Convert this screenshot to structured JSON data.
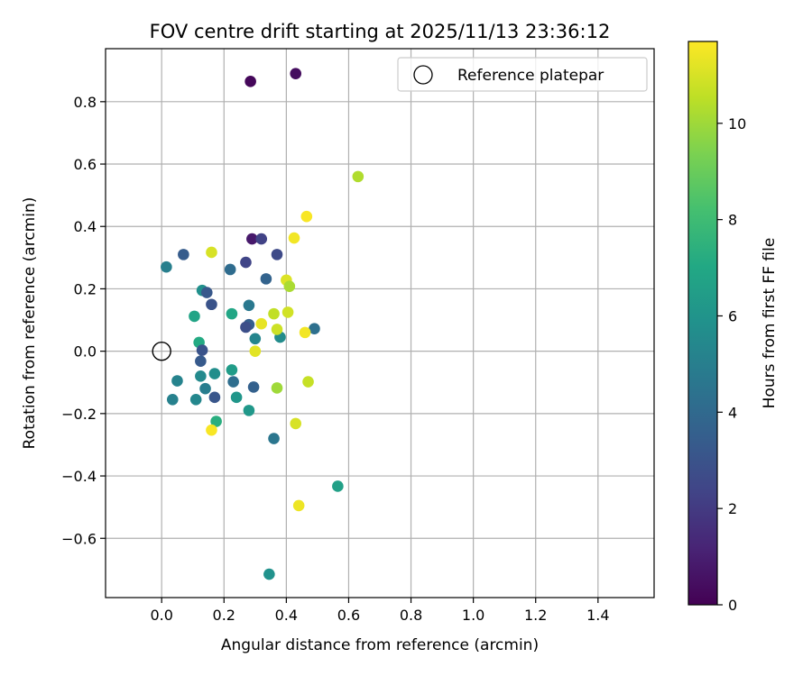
{
  "chart_data": {
    "type": "scatter",
    "title": "FOV centre drift starting at 2025/11/13 23:36:12",
    "xlabel": "Angular distance from reference (arcmin)",
    "ylabel": "Rotation from reference (arcmin)",
    "xlim": [
      -0.18,
      1.58
    ],
    "ylim": [
      -0.79,
      0.97
    ],
    "xticks": [
      0.0,
      0.2,
      0.4,
      0.6,
      0.8,
      1.0,
      1.2,
      1.4
    ],
    "xtick_labels": [
      "0.0",
      "0.2",
      "0.4",
      "0.6",
      "0.8",
      "1.0",
      "1.2",
      "1.4"
    ],
    "yticks": [
      -0.6,
      -0.4,
      -0.2,
      0.0,
      0.2,
      0.4,
      0.6,
      0.8
    ],
    "ytick_labels": [
      "−0.6",
      "−0.4",
      "−0.2",
      "0.0",
      "0.2",
      "0.4",
      "0.6",
      "0.8"
    ],
    "grid": true,
    "legend": {
      "label": "Reference platepar",
      "placement": "top-right"
    },
    "reference": {
      "x": 0.0,
      "y": 0.0
    },
    "colorbar": {
      "label": "Hours from first FF file",
      "range": [
        0,
        11.7
      ],
      "ticks": [
        0,
        2,
        4,
        6,
        8,
        10
      ],
      "tick_labels": [
        "0",
        "2",
        "4",
        "6",
        "8",
        "10"
      ],
      "colormap": "viridis"
    },
    "points": [
      {
        "x": 0.285,
        "y": 0.865,
        "h": 0.2
      },
      {
        "x": 0.43,
        "y": 0.89,
        "h": 0.4
      },
      {
        "x": 0.29,
        "y": 0.36,
        "h": 0.8
      },
      {
        "x": 0.32,
        "y": 0.36,
        "h": 2.3
      },
      {
        "x": 0.37,
        "y": 0.31,
        "h": 2.6
      },
      {
        "x": 0.27,
        "y": 0.285,
        "h": 2.4
      },
      {
        "x": 0.07,
        "y": 0.31,
        "h": 3.4
      },
      {
        "x": 0.015,
        "y": 0.27,
        "h": 5.0
      },
      {
        "x": 0.22,
        "y": 0.262,
        "h": 4.1
      },
      {
        "x": 0.335,
        "y": 0.232,
        "h": 3.7
      },
      {
        "x": 0.13,
        "y": 0.195,
        "h": 5.8
      },
      {
        "x": 0.145,
        "y": 0.188,
        "h": 3.2
      },
      {
        "x": 0.16,
        "y": 0.15,
        "h": 3.0
      },
      {
        "x": 0.28,
        "y": 0.147,
        "h": 4.7
      },
      {
        "x": 0.225,
        "y": 0.12,
        "h": 6.9
      },
      {
        "x": 0.105,
        "y": 0.112,
        "h": 6.8
      },
      {
        "x": 0.28,
        "y": 0.085,
        "h": 3.5
      },
      {
        "x": 0.27,
        "y": 0.077,
        "h": 2.8
      },
      {
        "x": 0.49,
        "y": 0.072,
        "h": 4.3
      },
      {
        "x": 0.38,
        "y": 0.045,
        "h": 5.6
      },
      {
        "x": 0.3,
        "y": 0.04,
        "h": 5.3
      },
      {
        "x": 0.12,
        "y": 0.028,
        "h": 7.1
      },
      {
        "x": 0.13,
        "y": 0.003,
        "h": 3.0
      },
      {
        "x": 0.125,
        "y": -0.032,
        "h": 3.3
      },
      {
        "x": 0.125,
        "y": -0.08,
        "h": 5.5
      },
      {
        "x": 0.17,
        "y": -0.072,
        "h": 5.7
      },
      {
        "x": 0.225,
        "y": -0.06,
        "h": 6.4
      },
      {
        "x": 0.05,
        "y": -0.095,
        "h": 5.2
      },
      {
        "x": 0.23,
        "y": -0.098,
        "h": 4.2
      },
      {
        "x": 0.14,
        "y": -0.12,
        "h": 4.9
      },
      {
        "x": 0.295,
        "y": -0.115,
        "h": 3.6
      },
      {
        "x": 0.17,
        "y": -0.148,
        "h": 3.1
      },
      {
        "x": 0.035,
        "y": -0.155,
        "h": 5.1
      },
      {
        "x": 0.11,
        "y": -0.155,
        "h": 5.4
      },
      {
        "x": 0.24,
        "y": -0.148,
        "h": 6.1
      },
      {
        "x": 0.28,
        "y": -0.19,
        "h": 6.2
      },
      {
        "x": 0.175,
        "y": -0.225,
        "h": 7.3
      },
      {
        "x": 0.36,
        "y": -0.28,
        "h": 4.6
      },
      {
        "x": 0.565,
        "y": -0.433,
        "h": 6.6
      },
      {
        "x": 0.345,
        "y": -0.715,
        "h": 5.9
      },
      {
        "x": 0.63,
        "y": 0.56,
        "h": 10.3
      },
      {
        "x": 0.465,
        "y": 0.432,
        "h": 11.6
      },
      {
        "x": 0.425,
        "y": 0.363,
        "h": 11.5
      },
      {
        "x": 0.16,
        "y": 0.317,
        "h": 11.0
      },
      {
        "x": 0.4,
        "y": 0.228,
        "h": 11.1
      },
      {
        "x": 0.41,
        "y": 0.208,
        "h": 10.2
      },
      {
        "x": 0.405,
        "y": 0.125,
        "h": 10.9
      },
      {
        "x": 0.36,
        "y": 0.12,
        "h": 10.6
      },
      {
        "x": 0.32,
        "y": 0.088,
        "h": 11.3
      },
      {
        "x": 0.37,
        "y": 0.07,
        "h": 10.8
      },
      {
        "x": 0.46,
        "y": 0.06,
        "h": 11.5
      },
      {
        "x": 0.3,
        "y": 0.0,
        "h": 11.2
      },
      {
        "x": 0.37,
        "y": -0.118,
        "h": 10.0
      },
      {
        "x": 0.47,
        "y": -0.098,
        "h": 10.7
      },
      {
        "x": 0.43,
        "y": -0.232,
        "h": 11.0
      },
      {
        "x": 0.16,
        "y": -0.253,
        "h": 11.6
      },
      {
        "x": 0.44,
        "y": -0.495,
        "h": 11.4
      }
    ]
  },
  "colors": {
    "axes": "#000000",
    "grid": "#b0b0b0",
    "legend_border": "#cccccc"
  }
}
